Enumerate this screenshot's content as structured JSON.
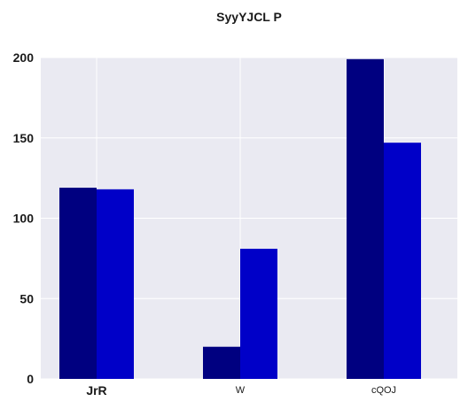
{
  "chart_data": {
    "type": "bar",
    "title": "SyyYJCL P",
    "xlabel": "",
    "ylabel": "",
    "categories": [
      "JrR",
      "W",
      "cQOJ"
    ],
    "category_label_style": [
      "bold-large",
      "normal-small",
      "normal-small"
    ],
    "series": [
      {
        "values": [
          119,
          20,
          199
        ],
        "color": "#000080"
      },
      {
        "values": [
          118,
          81,
          147
        ],
        "color": "#0000c8"
      }
    ],
    "ylim": [
      0,
      200
    ],
    "yticks": [
      0,
      50,
      100,
      150,
      200
    ],
    "grid": true,
    "legend": "none",
    "background": "#eaeaf2",
    "grid_color": "#ffffff"
  }
}
